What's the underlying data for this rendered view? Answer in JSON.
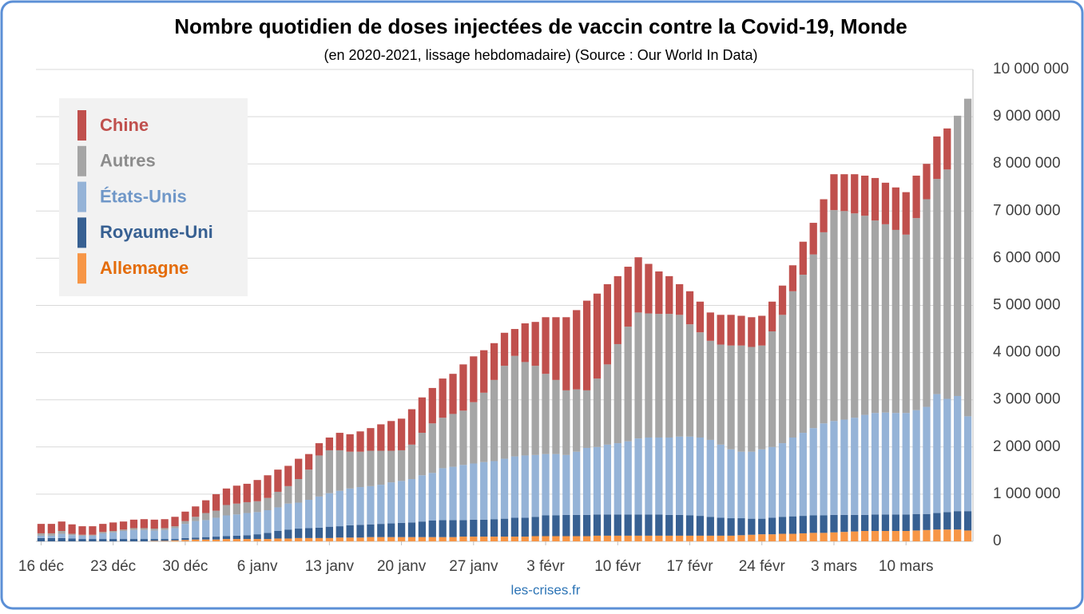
{
  "chart_data": {
    "type": "stacked_bar",
    "title": "Nombre quotidien de doses injectées de vaccin contre la Covid-19, Monde",
    "subtitle": "(en 2020-2021, lissage hebdomadaire) (Source : Our World In Data)",
    "source": "les-crises.fr",
    "categories": [
      "16 déc",
      null,
      null,
      null,
      null,
      null,
      null,
      "23 déc",
      null,
      null,
      null,
      null,
      null,
      null,
      "30 déc",
      null,
      null,
      null,
      null,
      null,
      null,
      "6 janv",
      null,
      null,
      null,
      null,
      null,
      null,
      "13 janv",
      null,
      null,
      null,
      null,
      null,
      null,
      "20 janv",
      null,
      null,
      null,
      null,
      null,
      null,
      "27 janv",
      null,
      null,
      null,
      null,
      null,
      null,
      "3 févr",
      null,
      null,
      null,
      null,
      null,
      null,
      "10 févr",
      null,
      null,
      null,
      null,
      null,
      null,
      "17 févr",
      null,
      null,
      null,
      null,
      null,
      null,
      "24 févr",
      null,
      null,
      null,
      null,
      null,
      null,
      "3 mars",
      null,
      null,
      null,
      null,
      null,
      null,
      "10 mars",
      null,
      null,
      null,
      null,
      null,
      null
    ],
    "series": [
      {
        "name": "Allemagne",
        "color": "#f79646",
        "label_color": "#e46c0a",
        "values": [
          0,
          0,
          0,
          0,
          0,
          0,
          0,
          0,
          0,
          0,
          0,
          10000,
          10000,
          20000,
          30000,
          40000,
          40000,
          40000,
          50000,
          50000,
          50000,
          50000,
          50000,
          60000,
          60000,
          70000,
          70000,
          70000,
          70000,
          80000,
          80000,
          80000,
          90000,
          90000,
          90000,
          90000,
          90000,
          90000,
          90000,
          90000,
          90000,
          100000,
          100000,
          100000,
          100000,
          100000,
          100000,
          100000,
          110000,
          110000,
          110000,
          110000,
          110000,
          110000,
          120000,
          120000,
          120000,
          120000,
          120000,
          120000,
          120000,
          120000,
          120000,
          120000,
          120000,
          120000,
          120000,
          120000,
          130000,
          140000,
          150000,
          150000,
          160000,
          160000,
          170000,
          180000,
          180000,
          190000,
          200000,
          210000,
          220000,
          220000,
          220000,
          220000,
          220000,
          230000,
          240000,
          250000,
          250000,
          250000,
          230000
        ]
      },
      {
        "name": "Royaume-Uni",
        "color": "#376092",
        "label_color": "#376092",
        "values": [
          70000,
          70000,
          70000,
          60000,
          50000,
          50000,
          50000,
          50000,
          50000,
          50000,
          50000,
          40000,
          40000,
          30000,
          40000,
          40000,
          50000,
          60000,
          60000,
          70000,
          80000,
          100000,
          130000,
          160000,
          190000,
          200000,
          210000,
          220000,
          240000,
          240000,
          260000,
          270000,
          270000,
          280000,
          290000,
          300000,
          310000,
          330000,
          350000,
          360000,
          360000,
          350000,
          360000,
          360000,
          370000,
          380000,
          400000,
          400000,
          410000,
          440000,
          440000,
          450000,
          450000,
          450000,
          450000,
          450000,
          450000,
          450000,
          450000,
          450000,
          450000,
          440000,
          440000,
          430000,
          420000,
          400000,
          380000,
          370000,
          360000,
          340000,
          330000,
          350000,
          360000,
          370000,
          370000,
          370000,
          370000,
          370000,
          360000,
          350000,
          340000,
          350000,
          350000,
          350000,
          350000,
          350000,
          340000,
          350000,
          370000,
          390000,
          410000
        ]
      },
      {
        "name": "États-Unis",
        "color": "#95b3d7",
        "label_color": "#6f97c8",
        "values": [
          50000,
          50000,
          90000,
          70000,
          70000,
          70000,
          120000,
          140000,
          170000,
          190000,
          190000,
          180000,
          190000,
          230000,
          300000,
          350000,
          360000,
          400000,
          440000,
          450000,
          470000,
          470000,
          480000,
          500000,
          550000,
          550000,
          600000,
          660000,
          710000,
          750000,
          780000,
          800000,
          810000,
          830000,
          870000,
          890000,
          920000,
          980000,
          1010000,
          1100000,
          1130000,
          1170000,
          1190000,
          1220000,
          1230000,
          1270000,
          1300000,
          1320000,
          1310000,
          1300000,
          1300000,
          1270000,
          1340000,
          1420000,
          1430000,
          1480000,
          1510000,
          1550000,
          1610000,
          1630000,
          1630000,
          1640000,
          1660000,
          1670000,
          1660000,
          1630000,
          1550000,
          1460000,
          1410000,
          1420000,
          1470000,
          1500000,
          1560000,
          1670000,
          1760000,
          1850000,
          1950000,
          1990000,
          2020000,
          2060000,
          2120000,
          2150000,
          2160000,
          2150000,
          2150000,
          2200000,
          2270000,
          2520000,
          2400000,
          2440000,
          2010000
        ]
      },
      {
        "name": "Autres",
        "color": "#a5a5a5",
        "label_color": "#8c8c8c",
        "values": [
          50000,
          50000,
          60000,
          30000,
          20000,
          20000,
          30000,
          30000,
          30000,
          40000,
          40000,
          40000,
          40000,
          40000,
          60000,
          90000,
          150000,
          150000,
          220000,
          230000,
          230000,
          230000,
          260000,
          330000,
          370000,
          500000,
          640000,
          870000,
          910000,
          860000,
          780000,
          750000,
          750000,
          720000,
          670000,
          650000,
          730000,
          900000,
          1050000,
          1070000,
          1120000,
          1150000,
          1300000,
          1470000,
          1720000,
          1970000,
          2130000,
          1980000,
          1890000,
          1700000,
          1570000,
          1370000,
          1320000,
          1220000,
          1450000,
          1700000,
          2100000,
          2430000,
          2670000,
          2630000,
          2620000,
          2620000,
          2580000,
          2380000,
          2230000,
          2100000,
          2120000,
          2200000,
          2250000,
          2220000,
          2200000,
          2450000,
          2720000,
          3100000,
          3350000,
          3680000,
          4050000,
          4470000,
          4420000,
          4330000,
          4220000,
          4080000,
          3990000,
          3880000,
          3780000,
          4070000,
          4400000,
          4560000,
          4860000,
          5940000,
          6730000
        ]
      },
      {
        "name": "Chine",
        "color": "#c0504d",
        "label_color": "#c0504d",
        "values": [
          200000,
          200000,
          200000,
          200000,
          180000,
          180000,
          170000,
          180000,
          170000,
          180000,
          190000,
          190000,
          190000,
          200000,
          200000,
          220000,
          270000,
          350000,
          350000,
          380000,
          390000,
          450000,
          480000,
          470000,
          430000,
          430000,
          330000,
          260000,
          270000,
          370000,
          370000,
          430000,
          480000,
          560000,
          630000,
          670000,
          750000,
          750000,
          750000,
          830000,
          850000,
          980000,
          970000,
          900000,
          780000,
          700000,
          570000,
          820000,
          930000,
          1200000,
          1330000,
          1550000,
          1680000,
          1900000,
          1800000,
          1700000,
          1440000,
          1270000,
          1170000,
          1050000,
          900000,
          800000,
          650000,
          700000,
          650000,
          600000,
          630000,
          650000,
          630000,
          630000,
          630000,
          630000,
          620000,
          550000,
          700000,
          670000,
          700000,
          760000,
          780000,
          830000,
          850000,
          900000,
          880000,
          900000,
          900000,
          900000,
          750000,
          900000,
          870000,
          0,
          0
        ]
      }
    ],
    "ylim": [
      0,
      10000000
    ],
    "yticks": [
      0,
      {
        "value": 1000000,
        "label": "1 000 000"
      },
      {
        "value": 2000000,
        "label": "2 000 000"
      },
      {
        "value": 3000000,
        "label": "3 000 000"
      },
      {
        "value": 4000000,
        "label": "4 000 000"
      },
      {
        "value": 5000000,
        "label": "5 000 000"
      },
      {
        "value": 6000000,
        "label": "6 000 000"
      },
      {
        "value": 7000000,
        "label": "7 000 000"
      },
      {
        "value": 8000000,
        "label": "8 000 000"
      },
      {
        "value": 9000000,
        "label": "9 000 000"
      },
      {
        "value": 10000000,
        "label": "10 000 000"
      }
    ],
    "y_axis_side": "right",
    "grid": true,
    "legend": "upper left"
  }
}
